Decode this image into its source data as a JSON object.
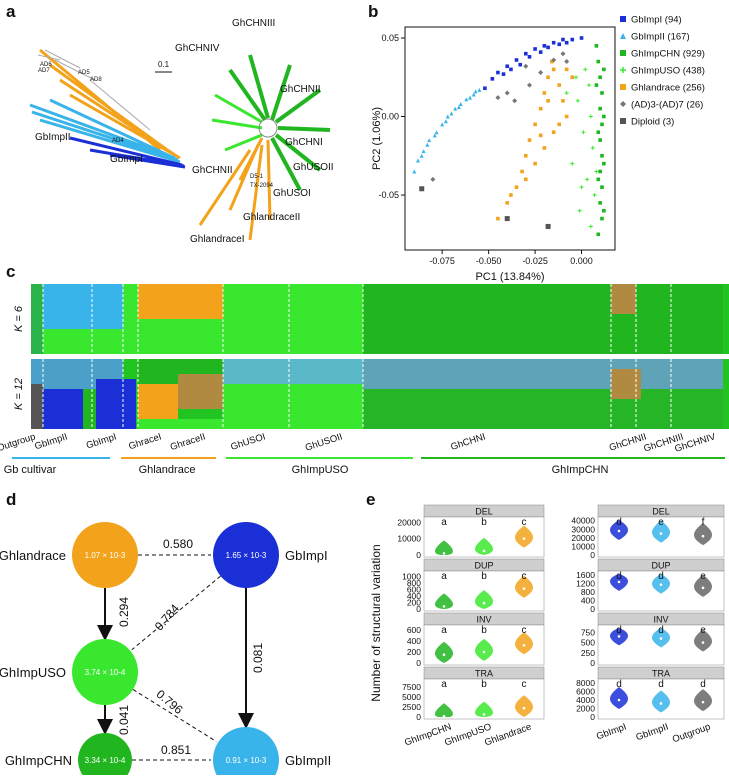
{
  "panel_letters": {
    "a": "a",
    "b": "b",
    "c": "c",
    "d": "d",
    "e": "e"
  },
  "colors": {
    "GbImpI": "#1a2fd6",
    "GbImpII": "#39b4ea",
    "GhImpCHN": "#21b520",
    "GhImpUSO": "#39e82e",
    "Ghlandrace": "#f2a31b",
    "AD37": "#777777",
    "Diploid": "#555555",
    "Outgroup": "#666666",
    "panel_header": "#cfcfcf"
  },
  "tree": {
    "scale_label": "0.1",
    "clade_labels": [
      "GhCHNIII",
      "GhCHNIV",
      "GhCHNII",
      "GbImpII",
      "GbImpI",
      "GhCHNI",
      "GhUSOII",
      "GhCHNII",
      "GhUSOI",
      "GhlandraceII",
      "GhlandraceI"
    ],
    "small_labels": [
      "AD6",
      "AD7",
      "AD5",
      "AD8",
      "AD4",
      "D5-1",
      "TX-2094"
    ]
  },
  "chart_data": [
    {
      "type": "scatter",
      "panel": "b",
      "xlabel": "PC1 (13.84%)",
      "ylabel": "PC2 (1.06%)",
      "xlim": [
        -0.095,
        0.018
      ],
      "ylim": [
        -0.085,
        0.057
      ],
      "xticks": [
        "-0.075",
        "-0.050",
        "-0.025",
        "0.000"
      ],
      "xtick_values": [
        -0.075,
        -0.05,
        -0.025,
        0.0
      ],
      "yticks": [
        "0.05",
        "0.00",
        "-0.05"
      ],
      "ytick_values": [
        0.05,
        0.0,
        -0.05
      ],
      "legend": [
        {
          "name": "GbImpI (94)",
          "group": "GbImpI",
          "marker": "square"
        },
        {
          "name": "GbImpII (167)",
          "group": "GbImpII",
          "marker": "triangle"
        },
        {
          "name": "GhImpCHN (929)",
          "group": "GhImpCHN",
          "marker": "square"
        },
        {
          "name": "GhImpUSO (438)",
          "group": "GhImpUSO",
          "marker": "plus"
        },
        {
          "name": "Ghlandrace (256)",
          "group": "Ghlandrace",
          "marker": "square"
        },
        {
          "name": "(AD)3-(AD)7 (26)",
          "group": "AD37",
          "marker": "diamond"
        },
        {
          "name": "Diploid (3)",
          "group": "Diploid",
          "marker": "square"
        }
      ],
      "series": [
        {
          "name": "GbImpI",
          "points": [
            [
              -0.052,
              0.018
            ],
            [
              -0.048,
              0.024
            ],
            [
              -0.045,
              0.028
            ],
            [
              -0.04,
              0.032
            ],
            [
              -0.035,
              0.036
            ],
            [
              -0.03,
              0.04
            ],
            [
              -0.025,
              0.043
            ],
            [
              -0.02,
              0.045
            ],
            [
              -0.015,
              0.047
            ],
            [
              -0.01,
              0.049
            ],
            [
              -0.005,
              0.049
            ],
            [
              0.0,
              0.05
            ],
            [
              -0.038,
              0.03
            ],
            [
              -0.028,
              0.038
            ],
            [
              -0.018,
              0.044
            ],
            [
              -0.008,
              0.047
            ],
            [
              -0.042,
              0.027
            ],
            [
              -0.033,
              0.033
            ],
            [
              -0.022,
              0.041
            ],
            [
              -0.012,
              0.046
            ]
          ]
        },
        {
          "name": "GbImpII",
          "points": [
            [
              -0.09,
              -0.035
            ],
            [
              -0.088,
              -0.028
            ],
            [
              -0.085,
              -0.022
            ],
            [
              -0.082,
              -0.015
            ],
            [
              -0.078,
              -0.01
            ],
            [
              -0.075,
              -0.005
            ],
            [
              -0.072,
              0.0
            ],
            [
              -0.068,
              0.005
            ],
            [
              -0.065,
              0.008
            ],
            [
              -0.062,
              0.011
            ],
            [
              -0.058,
              0.014
            ],
            [
              -0.055,
              0.017
            ],
            [
              -0.083,
              -0.018
            ],
            [
              -0.079,
              -0.012
            ],
            [
              -0.07,
              0.002
            ],
            [
              -0.066,
              0.006
            ],
            [
              -0.06,
              0.012
            ],
            [
              -0.086,
              -0.025
            ],
            [
              -0.073,
              -0.003
            ],
            [
              -0.057,
              0.016
            ]
          ]
        },
        {
          "name": "GhImpCHN",
          "points": [
            [
              0.008,
              0.045
            ],
            [
              0.009,
              0.035
            ],
            [
              0.01,
              0.025
            ],
            [
              0.011,
              0.015
            ],
            [
              0.01,
              0.005
            ],
            [
              0.011,
              -0.005
            ],
            [
              0.01,
              -0.015
            ],
            [
              0.011,
              -0.025
            ],
            [
              0.01,
              -0.035
            ],
            [
              0.011,
              -0.045
            ],
            [
              0.01,
              -0.055
            ],
            [
              0.011,
              -0.065
            ],
            [
              0.009,
              -0.075
            ],
            [
              0.012,
              0.03
            ],
            [
              0.012,
              0.0
            ],
            [
              0.012,
              -0.03
            ],
            [
              0.009,
              -0.01
            ],
            [
              0.009,
              -0.04
            ],
            [
              0.012,
              -0.06
            ],
            [
              0.008,
              0.02
            ]
          ]
        },
        {
          "name": "GhImpUSO",
          "points": [
            [
              0.002,
              0.03
            ],
            [
              0.004,
              0.02
            ],
            [
              -0.002,
              0.01
            ],
            [
              0.005,
              0.0
            ],
            [
              0.001,
              -0.01
            ],
            [
              0.006,
              -0.02
            ],
            [
              -0.005,
              -0.03
            ],
            [
              0.003,
              -0.04
            ],
            [
              0.007,
              -0.05
            ],
            [
              -0.001,
              -0.06
            ],
            [
              0.005,
              -0.07
            ],
            [
              -0.008,
              0.015
            ],
            [
              0.008,
              -0.035
            ],
            [
              0.0,
              -0.045
            ],
            [
              -0.003,
              0.025
            ]
          ]
        },
        {
          "name": "Ghlandrace",
          "points": [
            [
              -0.045,
              -0.065
            ],
            [
              -0.04,
              -0.055
            ],
            [
              -0.035,
              -0.045
            ],
            [
              -0.032,
              -0.035
            ],
            [
              -0.03,
              -0.025
            ],
            [
              -0.028,
              -0.015
            ],
            [
              -0.025,
              -0.005
            ],
            [
              -0.022,
              0.005
            ],
            [
              -0.02,
              0.015
            ],
            [
              -0.018,
              0.025
            ],
            [
              -0.015,
              0.03
            ],
            [
              -0.012,
              0.02
            ],
            [
              -0.01,
              0.01
            ],
            [
              -0.008,
              0.0
            ],
            [
              -0.015,
              -0.01
            ],
            [
              -0.02,
              -0.02
            ],
            [
              -0.025,
              -0.03
            ],
            [
              -0.005,
              0.025
            ],
            [
              -0.012,
              -0.005
            ],
            [
              -0.03,
              -0.04
            ],
            [
              -0.018,
              0.01
            ],
            [
              -0.022,
              -0.012
            ],
            [
              -0.038,
              -0.05
            ],
            [
              -0.008,
              0.03
            ],
            [
              -0.016,
              0.035
            ]
          ]
        },
        {
          "name": "AD37",
          "points": [
            [
              -0.08,
              -0.04
            ],
            [
              -0.03,
              0.032
            ],
            [
              -0.022,
              0.028
            ],
            [
              -0.028,
              0.02
            ],
            [
              -0.015,
              0.036
            ],
            [
              -0.01,
              0.04
            ],
            [
              -0.008,
              0.035
            ],
            [
              -0.04,
              0.015
            ],
            [
              -0.045,
              0.012
            ],
            [
              -0.036,
              0.01
            ]
          ]
        },
        {
          "name": "Diploid",
          "points": [
            [
              -0.086,
              -0.046
            ],
            [
              -0.04,
              -0.065
            ],
            [
              -0.018,
              -0.07
            ]
          ]
        }
      ]
    },
    {
      "type": "stacked-bar",
      "panel": "c",
      "rows": [
        {
          "label": "K = 6"
        },
        {
          "label": "K = 12"
        }
      ],
      "group_labels": [
        "Outgroup",
        "GbImpII",
        "GbImpI",
        "GhraceI",
        "GhraceII",
        "GhUSOI",
        "GhUSOII",
        "GhCHNI",
        "GhCHNII",
        "GhCHNIII",
        "GhCHNIV"
      ],
      "super_groups": [
        {
          "name": "Gb cultivar",
          "color": "#39b4ea"
        },
        {
          "name": "Ghlandrace",
          "color": "#f2a31b"
        },
        {
          "name": "GhImpUSO",
          "color": "#39e82e"
        },
        {
          "name": "GhImpCHN",
          "color": "#21b520"
        }
      ]
    },
    {
      "type": "diagram",
      "panel": "d",
      "nodes": [
        {
          "name": "Ghlandrace",
          "value": "1.07 × 10-3",
          "color": "#f2a31b"
        },
        {
          "name": "GbImpI",
          "value": "1.65 × 10-3",
          "color": "#1a2fd6"
        },
        {
          "name": "GhImpUSO",
          "value": "3.74 × 10-4",
          "color": "#39e82e"
        },
        {
          "name": "GhImpCHN",
          "value": "3.34 × 10-4",
          "color": "#21b520"
        },
        {
          "name": "GbImpII",
          "value": "0.91 × 10-3",
          "color": "#39b4ea"
        }
      ],
      "edges": [
        {
          "from": "Ghlandrace",
          "to": "GbImpI",
          "value": "0.580",
          "style": "dashed"
        },
        {
          "from": "Ghlandrace",
          "to": "GhImpUSO",
          "value": "0.294",
          "style": "arrow"
        },
        {
          "from": "GbImpI",
          "to": "GhImpUSO",
          "value": "0.784",
          "style": "dashed"
        },
        {
          "from": "GbImpI",
          "to": "GbImpII",
          "value": "0.081",
          "style": "arrow"
        },
        {
          "from": "GhImpUSO",
          "to": "GbImpII",
          "value": "0.796",
          "style": "dashed"
        },
        {
          "from": "GhImpUSO",
          "to": "GhImpCHN",
          "value": "0.041",
          "style": "arrow"
        },
        {
          "from": "GhImpCHN",
          "to": "GbImpII",
          "value": "0.851",
          "style": "dashed"
        }
      ]
    },
    {
      "type": "violin",
      "panel": "e",
      "ylabel": "Number of structural variation",
      "left": {
        "categories": [
          "GhImpCHN",
          "GhImpUSO",
          "Ghlandrace"
        ],
        "colors": [
          "#21b520",
          "#39e82e",
          "#f2a31b"
        ],
        "panels": [
          {
            "title": "DEL",
            "ylim": [
              0,
              22000
            ],
            "yticks": [
              "20000",
              "10000",
              "0"
            ],
            "ytick_values": [
              20000,
              10000,
              0
            ],
            "medians": [
              1000,
              2500,
              10000
            ],
            "letters": [
              "a",
              "b",
              "c"
            ]
          },
          {
            "title": "DUP",
            "ylim": [
              0,
              1100
            ],
            "yticks": [
              "1000",
              "800",
              "600",
              "400",
              "200",
              "0"
            ],
            "ytick_values": [
              1000,
              800,
              600,
              400,
              200,
              0
            ],
            "medians": [
              80,
              180,
              620
            ],
            "letters": [
              "a",
              "b",
              "c"
            ]
          },
          {
            "title": "INV",
            "ylim": [
              0,
              650
            ],
            "yticks": [
              "600",
              "400",
              "200",
              "0"
            ],
            "ytick_values": [
              600,
              400,
              200,
              0
            ],
            "medians": [
              150,
              200,
              320
            ],
            "letters": [
              "a",
              "b",
              "c"
            ]
          },
          {
            "title": "TRA",
            "ylim": [
              0,
              9000
            ],
            "yticks": [
              "7500",
              "5000",
              "2500",
              "0"
            ],
            "ytick_values": [
              7500,
              5000,
              2500,
              0
            ],
            "medians": [
              200,
              600,
              2200
            ],
            "letters": [
              "a",
              "b",
              "c"
            ]
          }
        ]
      },
      "right": {
        "categories": [
          "GbImpI",
          "GbImpII",
          "Outgroup"
        ],
        "colors": [
          "#1a2fd6",
          "#39b4ea",
          "#666666"
        ],
        "panels": [
          {
            "title": "DEL",
            "ylim": [
              0,
              42000
            ],
            "yticks": [
              "40000",
              "30000",
              "20000",
              "10000",
              "0"
            ],
            "ytick_values": [
              40000,
              30000,
              20000,
              10000,
              0
            ],
            "medians": [
              28000,
              25000,
              22000
            ],
            "letters": [
              "d",
              "e",
              "f"
            ]
          },
          {
            "title": "DUP",
            "ylim": [
              0,
              1700
            ],
            "yticks": [
              "1600",
              "1200",
              "800",
              "400",
              "0"
            ],
            "ytick_values": [
              1600,
              1200,
              800,
              400,
              0
            ],
            "medians": [
              1280,
              1150,
              1000
            ],
            "letters": [
              "d",
              "d",
              "e"
            ]
          },
          {
            "title": "INV",
            "ylim": [
              0,
              880
            ],
            "yticks": [
              "750",
              "500",
              "250",
              "0"
            ],
            "ytick_values": [
              750,
              500,
              250,
              0
            ],
            "medians": [
              650,
              600,
              500
            ],
            "letters": [
              "d",
              "d",
              "e"
            ]
          },
          {
            "title": "TRA",
            "ylim": [
              0,
              8500
            ],
            "yticks": [
              "8000",
              "6000",
              "4000",
              "2000",
              "0"
            ],
            "ytick_values": [
              8000,
              6000,
              4000,
              2000,
              0
            ],
            "medians": [
              4000,
              3200,
              3500
            ],
            "letters": [
              "d",
              "d",
              "d"
            ]
          }
        ]
      }
    }
  ]
}
